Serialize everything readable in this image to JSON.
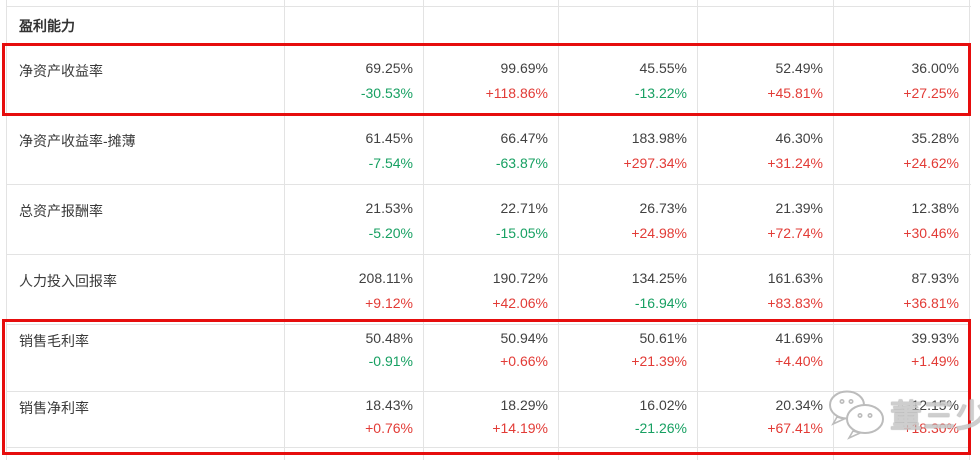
{
  "table": {
    "section_header": "盈利能力",
    "rows": [
      {
        "label": "净资产收益率",
        "highlighted": true,
        "cells": [
          {
            "value": "69.25%",
            "change": "-30.53%",
            "dir": "down"
          },
          {
            "value": "99.69%",
            "change": "+118.86%",
            "dir": "up"
          },
          {
            "value": "45.55%",
            "change": "-13.22%",
            "dir": "down"
          },
          {
            "value": "52.49%",
            "change": "+45.81%",
            "dir": "up"
          },
          {
            "value": "36.00%",
            "change": "+27.25%",
            "dir": "up"
          }
        ]
      },
      {
        "label": "净资产收益率-摊薄",
        "highlighted": false,
        "cells": [
          {
            "value": "61.45%",
            "change": "-7.54%",
            "dir": "down"
          },
          {
            "value": "66.47%",
            "change": "-63.87%",
            "dir": "down"
          },
          {
            "value": "183.98%",
            "change": "+297.34%",
            "dir": "up"
          },
          {
            "value": "46.30%",
            "change": "+31.24%",
            "dir": "up"
          },
          {
            "value": "35.28%",
            "change": "+24.62%",
            "dir": "up"
          }
        ]
      },
      {
        "label": "总资产报酬率",
        "highlighted": false,
        "cells": [
          {
            "value": "21.53%",
            "change": "-5.20%",
            "dir": "down"
          },
          {
            "value": "22.71%",
            "change": "-15.05%",
            "dir": "down"
          },
          {
            "value": "26.73%",
            "change": "+24.98%",
            "dir": "up"
          },
          {
            "value": "21.39%",
            "change": "+72.74%",
            "dir": "up"
          },
          {
            "value": "12.38%",
            "change": "+30.46%",
            "dir": "up"
          }
        ]
      },
      {
        "label": "人力投入回报率",
        "highlighted": false,
        "cells": [
          {
            "value": "208.11%",
            "change": "+9.12%",
            "dir": "up"
          },
          {
            "value": "190.72%",
            "change": "+42.06%",
            "dir": "up"
          },
          {
            "value": "134.25%",
            "change": "-16.94%",
            "dir": "down"
          },
          {
            "value": "161.63%",
            "change": "+83.83%",
            "dir": "up"
          },
          {
            "value": "87.93%",
            "change": "+36.81%",
            "dir": "up"
          }
        ]
      },
      {
        "label": "销售毛利率",
        "highlighted": true,
        "cells": [
          {
            "value": "50.48%",
            "change": "-0.91%",
            "dir": "down"
          },
          {
            "value": "50.94%",
            "change": "+0.66%",
            "dir": "up"
          },
          {
            "value": "50.61%",
            "change": "+21.39%",
            "dir": "up"
          },
          {
            "value": "41.69%",
            "change": "+4.40%",
            "dir": "up"
          },
          {
            "value": "39.93%",
            "change": "+1.49%",
            "dir": "up"
          }
        ]
      },
      {
        "label": "销售净利率",
        "highlighted": true,
        "cells": [
          {
            "value": "18.43%",
            "change": "+0.76%",
            "dir": "up"
          },
          {
            "value": "18.29%",
            "change": "+14.19%",
            "dir": "up"
          },
          {
            "value": "16.02%",
            "change": "-21.26%",
            "dir": "down"
          },
          {
            "value": "20.34%",
            "change": "+67.41%",
            "dir": "up"
          },
          {
            "value": "12.15%",
            "change": "+18.30%",
            "dir": "up"
          }
        ]
      }
    ]
  },
  "watermark": {
    "text": "董三少",
    "icon": "wechat-icon"
  },
  "colors": {
    "positive_change": "#e23b36",
    "negative_change": "#17a062",
    "value_text": "#414141",
    "highlight_border": "#e60d0d",
    "grid_line": "#e3e3e3",
    "watermark_gray": "#b9b9b9"
  }
}
